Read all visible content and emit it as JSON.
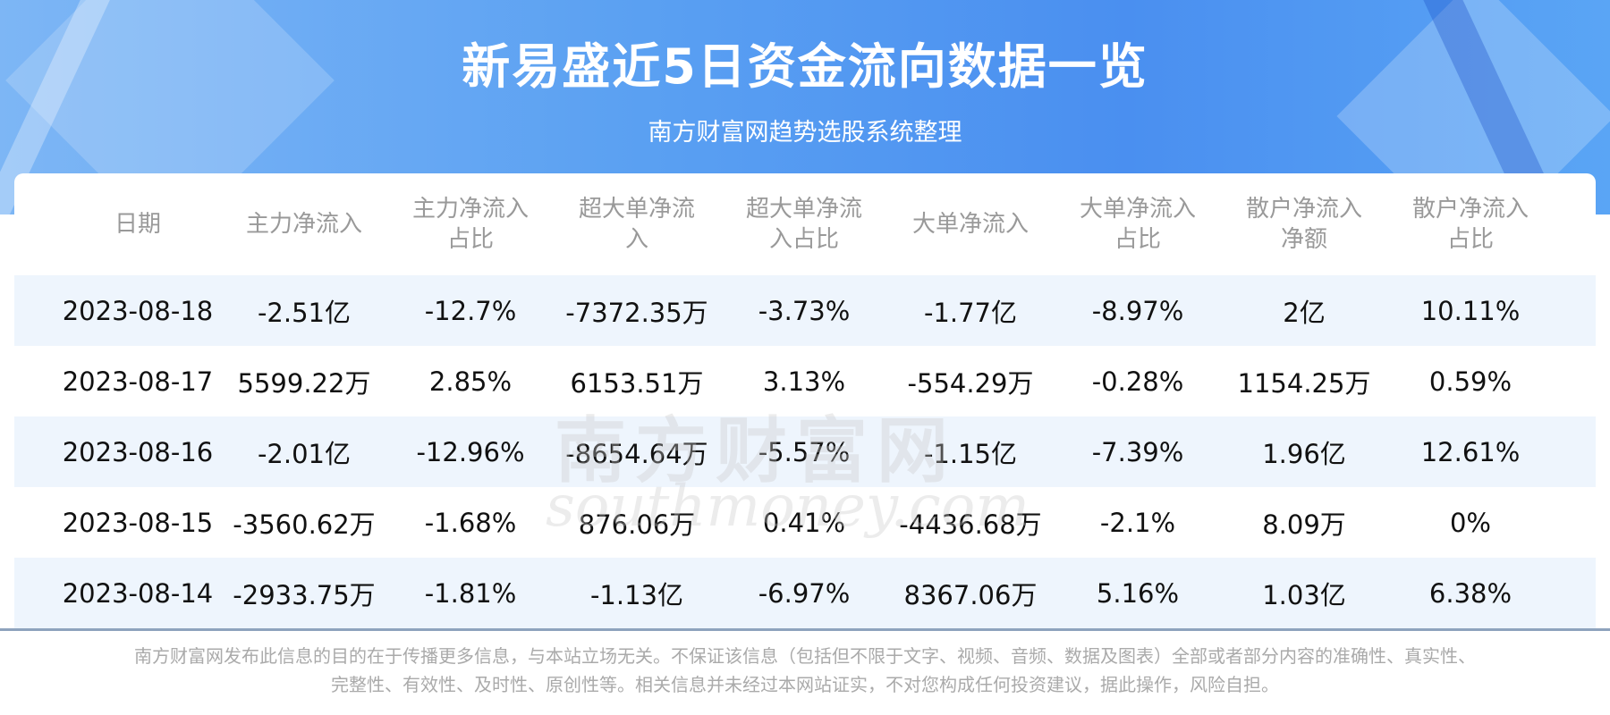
{
  "header": {
    "title": "新易盛近5日资金流向数据一览",
    "subtitle": "南方财富网趋势选股系统整理"
  },
  "watermark": {
    "cn": "南方财富网",
    "en": "southmoney.com"
  },
  "colors": {
    "accent": "#4a8ff0",
    "row_alt": "#eef5fd",
    "header_text": "#999999",
    "divider": "#8ea3bd"
  },
  "table": {
    "columns": [
      [
        "日期"
      ],
      [
        "主力净流入"
      ],
      [
        "主力净流入",
        "占比"
      ],
      [
        "超大单净流",
        "入"
      ],
      [
        "超大单净流",
        "入占比"
      ],
      [
        "大单净流入"
      ],
      [
        "大单净流入",
        "占比"
      ],
      [
        "散户净流入",
        "净额"
      ],
      [
        "散户净流入",
        "占比"
      ]
    ],
    "rows": [
      [
        "2023-08-18",
        "-2.51亿",
        "-12.7%",
        "-7372.35万",
        "-3.73%",
        "-1.77亿",
        "-8.97%",
        "2亿",
        "10.11%"
      ],
      [
        "2023-08-17",
        "5599.22万",
        "2.85%",
        "6153.51万",
        "3.13%",
        "-554.29万",
        "-0.28%",
        "1154.25万",
        "0.59%"
      ],
      [
        "2023-08-16",
        "-2.01亿",
        "-12.96%",
        "-8654.64万",
        "-5.57%",
        "-1.15亿",
        "-7.39%",
        "1.96亿",
        "12.61%"
      ],
      [
        "2023-08-15",
        "-3560.62万",
        "-1.68%",
        "876.06万",
        "0.41%",
        "-4436.68万",
        "-2.1%",
        "8.09万",
        "0%"
      ],
      [
        "2023-08-14",
        "-2933.75万",
        "-1.81%",
        "-1.13亿",
        "-6.97%",
        "8367.06万",
        "5.16%",
        "1.03亿",
        "6.38%"
      ]
    ]
  },
  "footer": {
    "line1": "南方财富网发布此信息的目的在于传播更多信息，与本站立场无关。不保证该信息（包括但不限于文字、视频、音频、数据及图表）全部或者部分内容的准确性、真实性、",
    "line2": "完整性、有效性、及时性、原创性等。相关信息并未经过本网站证实，不对您构成任何投资建议，据此操作，风险自担。"
  }
}
